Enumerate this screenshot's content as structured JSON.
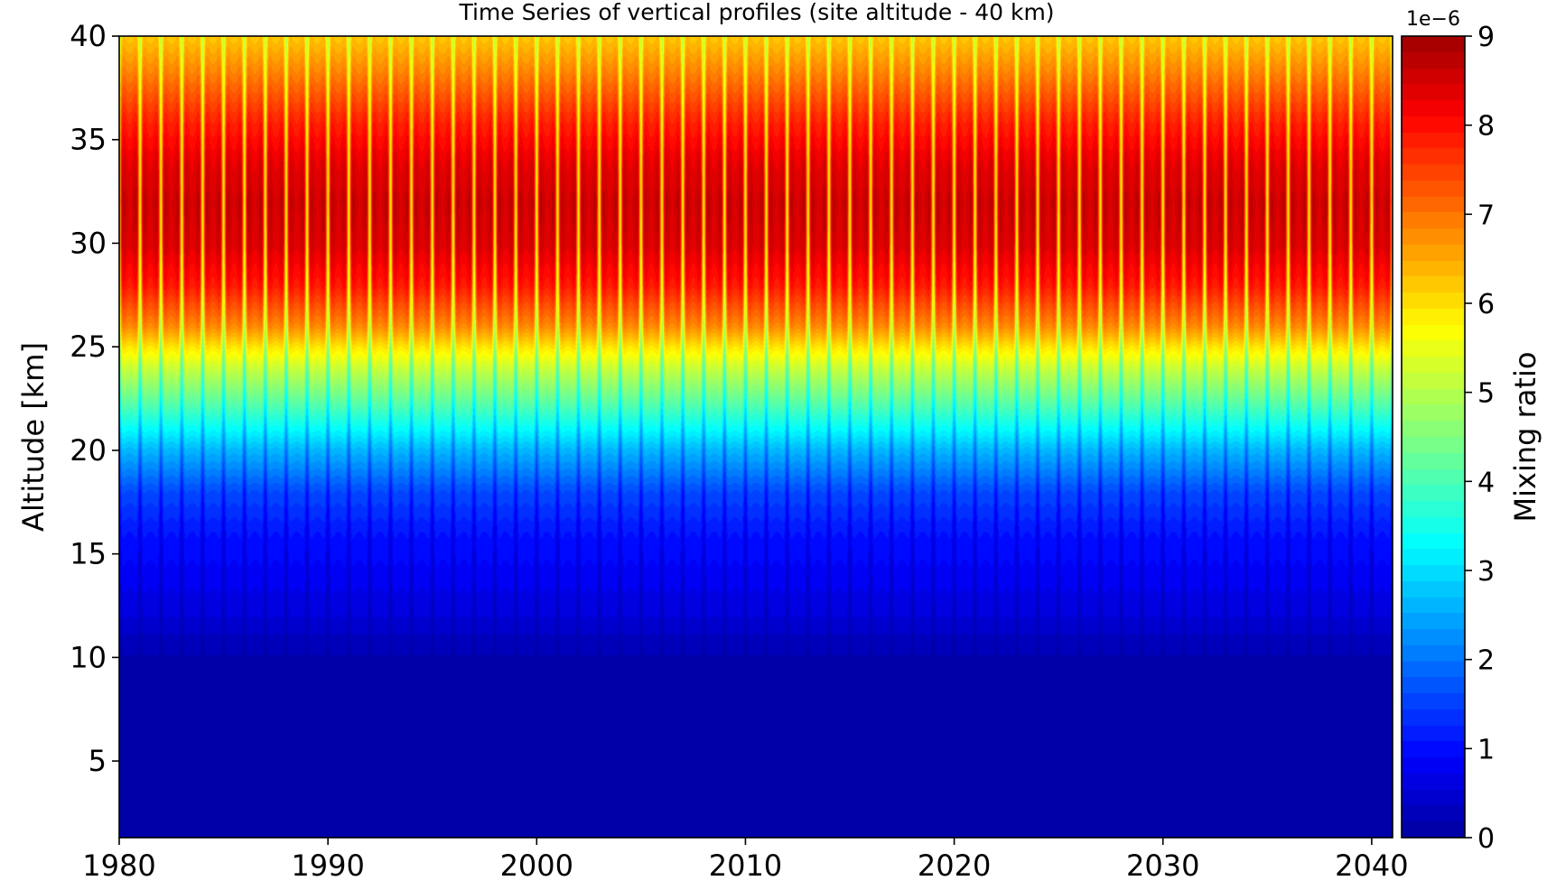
{
  "chart_data": {
    "type": "heatmap",
    "title": "Time Series of vertical profiles (site altitude - 40 km)",
    "xlabel": "",
    "ylabel": "Altitude [km]",
    "xlim": [
      1980,
      2041
    ],
    "ylim": [
      1.3,
      40
    ],
    "x_ticks": [
      1980,
      1990,
      2000,
      2010,
      2020,
      2030,
      2040
    ],
    "y_ticks": [
      5,
      10,
      15,
      20,
      25,
      30,
      35,
      40
    ],
    "colorbar": {
      "label": "Mixing ratio",
      "offset_text": "1e−6",
      "ticks": [
        0,
        1,
        2,
        3,
        4,
        5,
        6,
        7,
        8,
        9
      ],
      "range": [
        0,
        9
      ],
      "levels": 50,
      "colormap": "jet"
    },
    "profile": {
      "altitude_km": [
        1.3,
        10,
        11,
        12,
        14,
        16,
        18,
        20,
        22,
        24,
        25,
        26,
        28,
        30,
        32,
        34,
        36,
        38,
        40
      ],
      "mean_mixing_ratio_1e-6": [
        0.1,
        0.15,
        0.3,
        0.5,
        0.75,
        1.0,
        1.5,
        2.5,
        3.8,
        5.0,
        5.7,
        6.5,
        7.5,
        8.0,
        8.1,
        7.9,
        7.4,
        6.7,
        6.0
      ],
      "seasonal_amplitude_1e-6": [
        0.0,
        0.05,
        0.15,
        0.25,
        0.35,
        0.4,
        0.5,
        0.6,
        0.8,
        1.0,
        1.2,
        1.6,
        2.0,
        2.2,
        2.2,
        2.0,
        1.7,
        1.3,
        1.0
      ]
    },
    "seasonal_cycle_per_year": 1,
    "grid": false,
    "legend": "none"
  }
}
